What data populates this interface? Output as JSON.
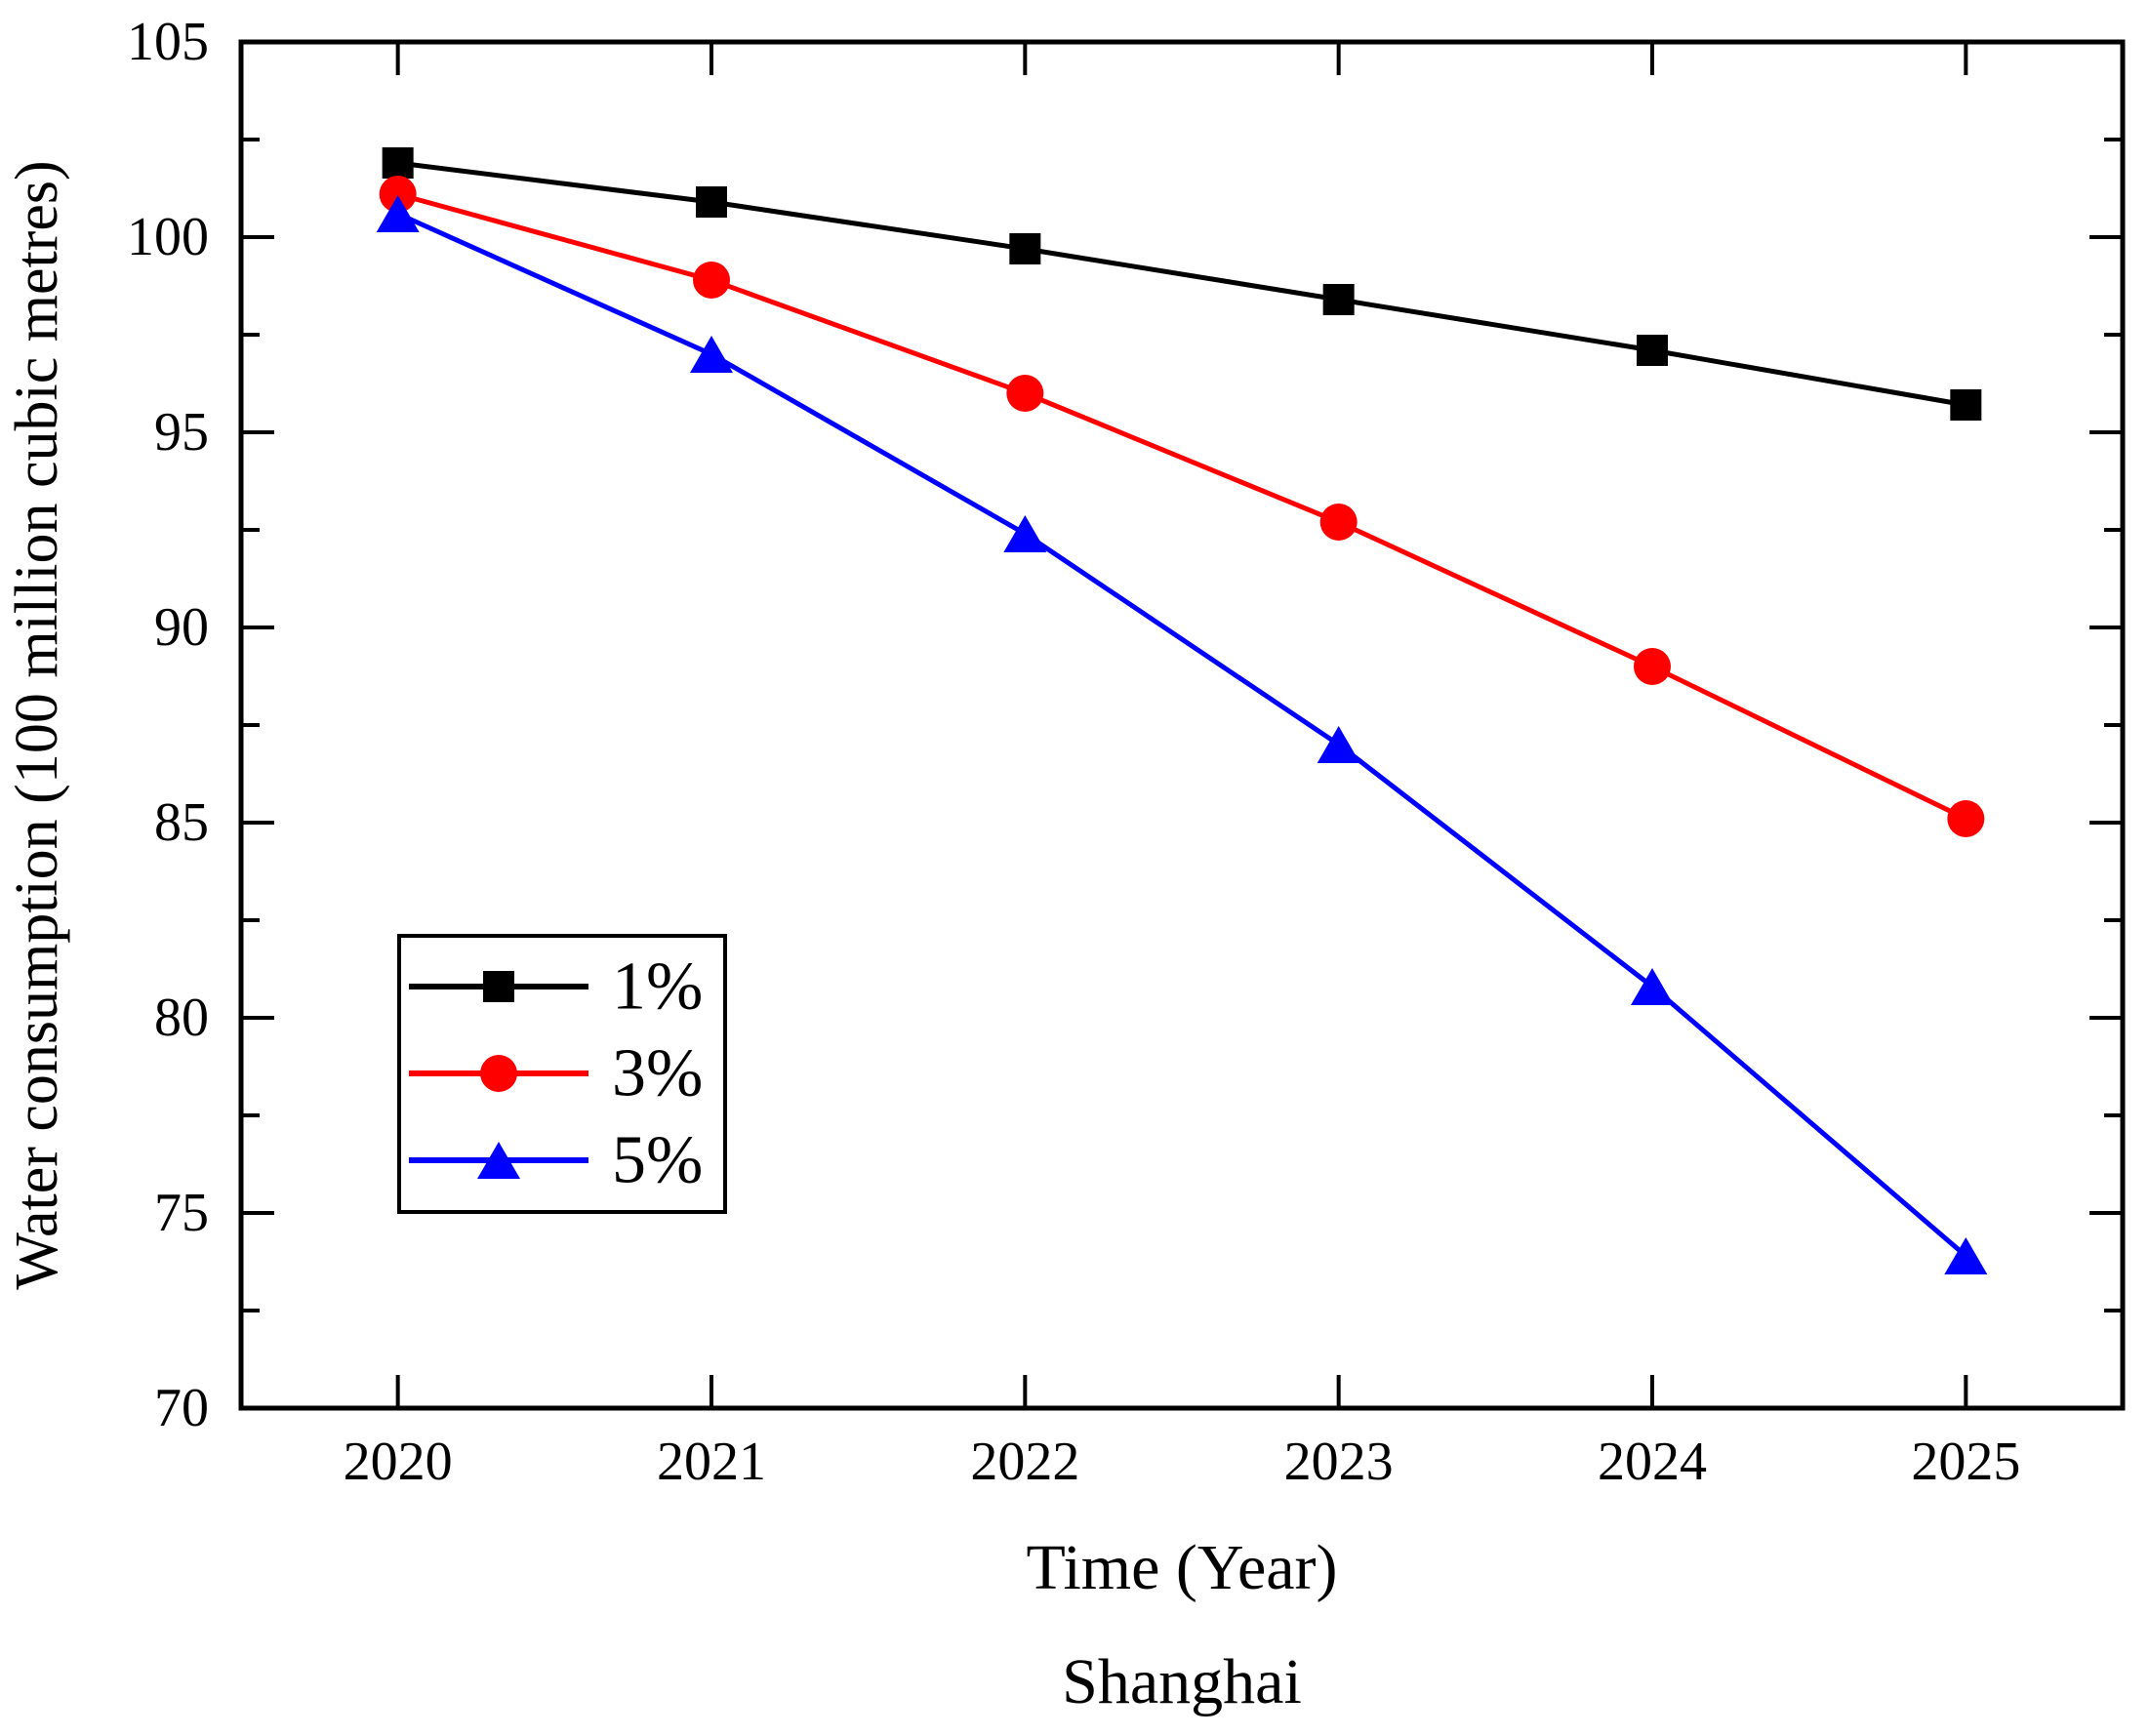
{
  "chart_data": {
    "type": "line",
    "title": "",
    "subtitle": "Shanghai",
    "xlabel": "Time (Year)",
    "ylabel": "Water consumption (100 million cubic metres)",
    "x": [
      2020,
      2021,
      2022,
      2023,
      2024,
      2025
    ],
    "series": [
      {
        "name": "1%",
        "color": "#000000",
        "marker": "square",
        "values": [
          101.9,
          100.9,
          99.7,
          98.4,
          97.1,
          95.7
        ]
      },
      {
        "name": "3%",
        "color": "#ff0000",
        "marker": "circle",
        "values": [
          101.1,
          98.9,
          96.0,
          92.7,
          89.0,
          85.1
        ]
      },
      {
        "name": "5%",
        "color": "#0000ff",
        "marker": "triangle",
        "values": [
          100.6,
          97.0,
          92.4,
          87.0,
          80.8,
          73.9
        ]
      }
    ],
    "x_ticks": [
      2020,
      2021,
      2022,
      2023,
      2024,
      2025
    ],
    "y_ticks": [
      70,
      75,
      80,
      85,
      90,
      95,
      100,
      105
    ],
    "y_minor_ticks": [
      72.5,
      77.5,
      82.5,
      87.5,
      92.5,
      97.5,
      102.5
    ],
    "xlim": [
      2019.5,
      2025.5
    ],
    "ylim": [
      70,
      105
    ],
    "grid": false,
    "legend": {
      "position": "inside-left-middle",
      "entries": [
        "1%",
        "3%",
        "5%"
      ]
    },
    "axis_color": "#000000"
  }
}
